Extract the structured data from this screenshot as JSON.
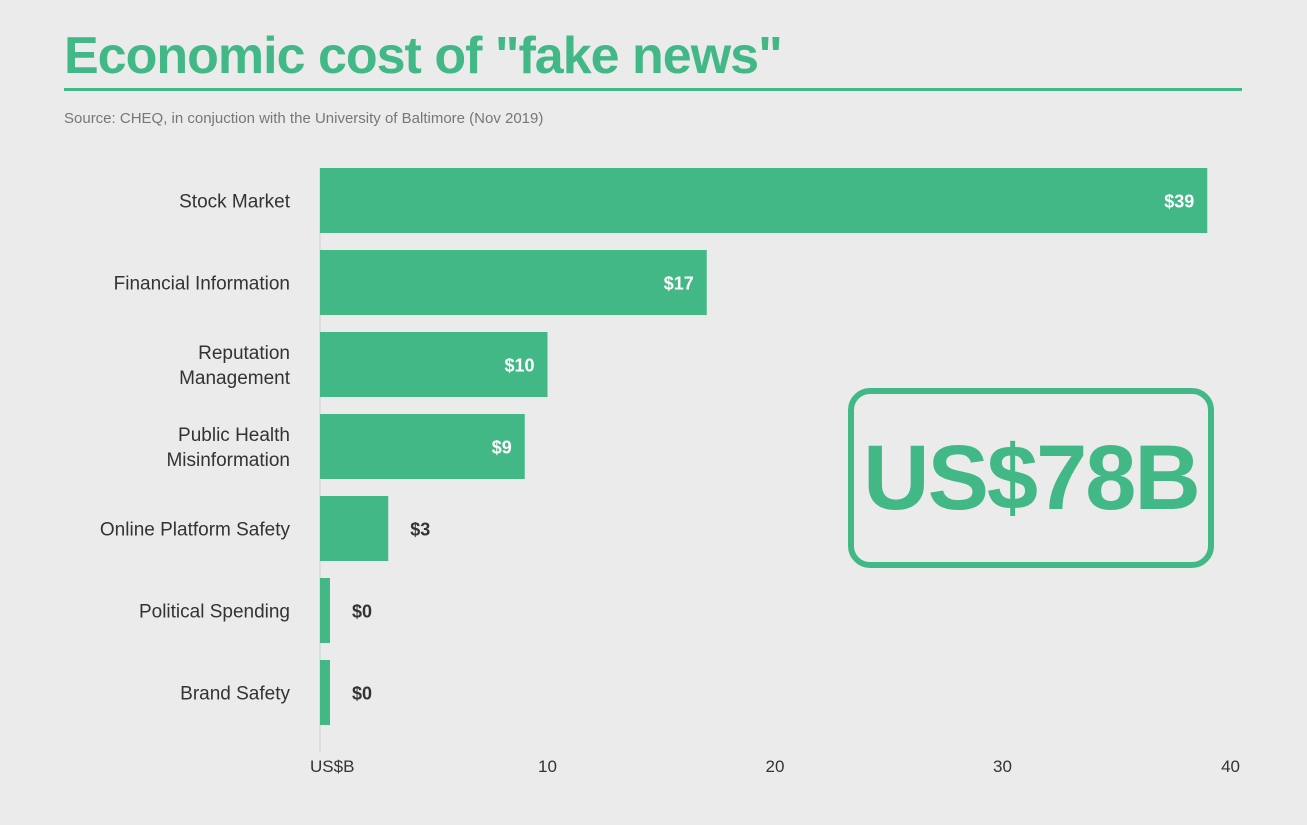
{
  "title": "Economic cost of \"fake news\"",
  "source": "Source: CHEQ, in conjuction with the University of Baltimore (Nov 2019)",
  "total_callout": "US$78B",
  "colors": {
    "accent": "#43b887",
    "bar_label_inside": "#ffffff",
    "bar_label_outside": "#333333"
  },
  "chart_data": {
    "type": "bar",
    "orientation": "horizontal",
    "categories": [
      [
        "Stock Market"
      ],
      [
        "Financial Information"
      ],
      [
        "Reputation",
        "Management"
      ],
      [
        "Public Health",
        "Misinformation"
      ],
      [
        "Online Platform Safety"
      ],
      [
        "Political Spending"
      ],
      [
        "Brand Safety"
      ]
    ],
    "values": [
      39,
      17,
      10,
      9,
      3,
      0,
      0
    ],
    "data_labels": [
      "$39",
      "$17",
      "$10",
      "$9",
      "$3",
      "$0",
      "$0"
    ],
    "xlim": [
      0,
      40
    ],
    "x_ticks": [
      {
        "value": 0,
        "label": "US$B"
      },
      {
        "value": 10,
        "label": "10"
      },
      {
        "value": 20,
        "label": "20"
      },
      {
        "value": 30,
        "label": "30"
      },
      {
        "value": 40,
        "label": "40"
      }
    ],
    "grid": false
  }
}
